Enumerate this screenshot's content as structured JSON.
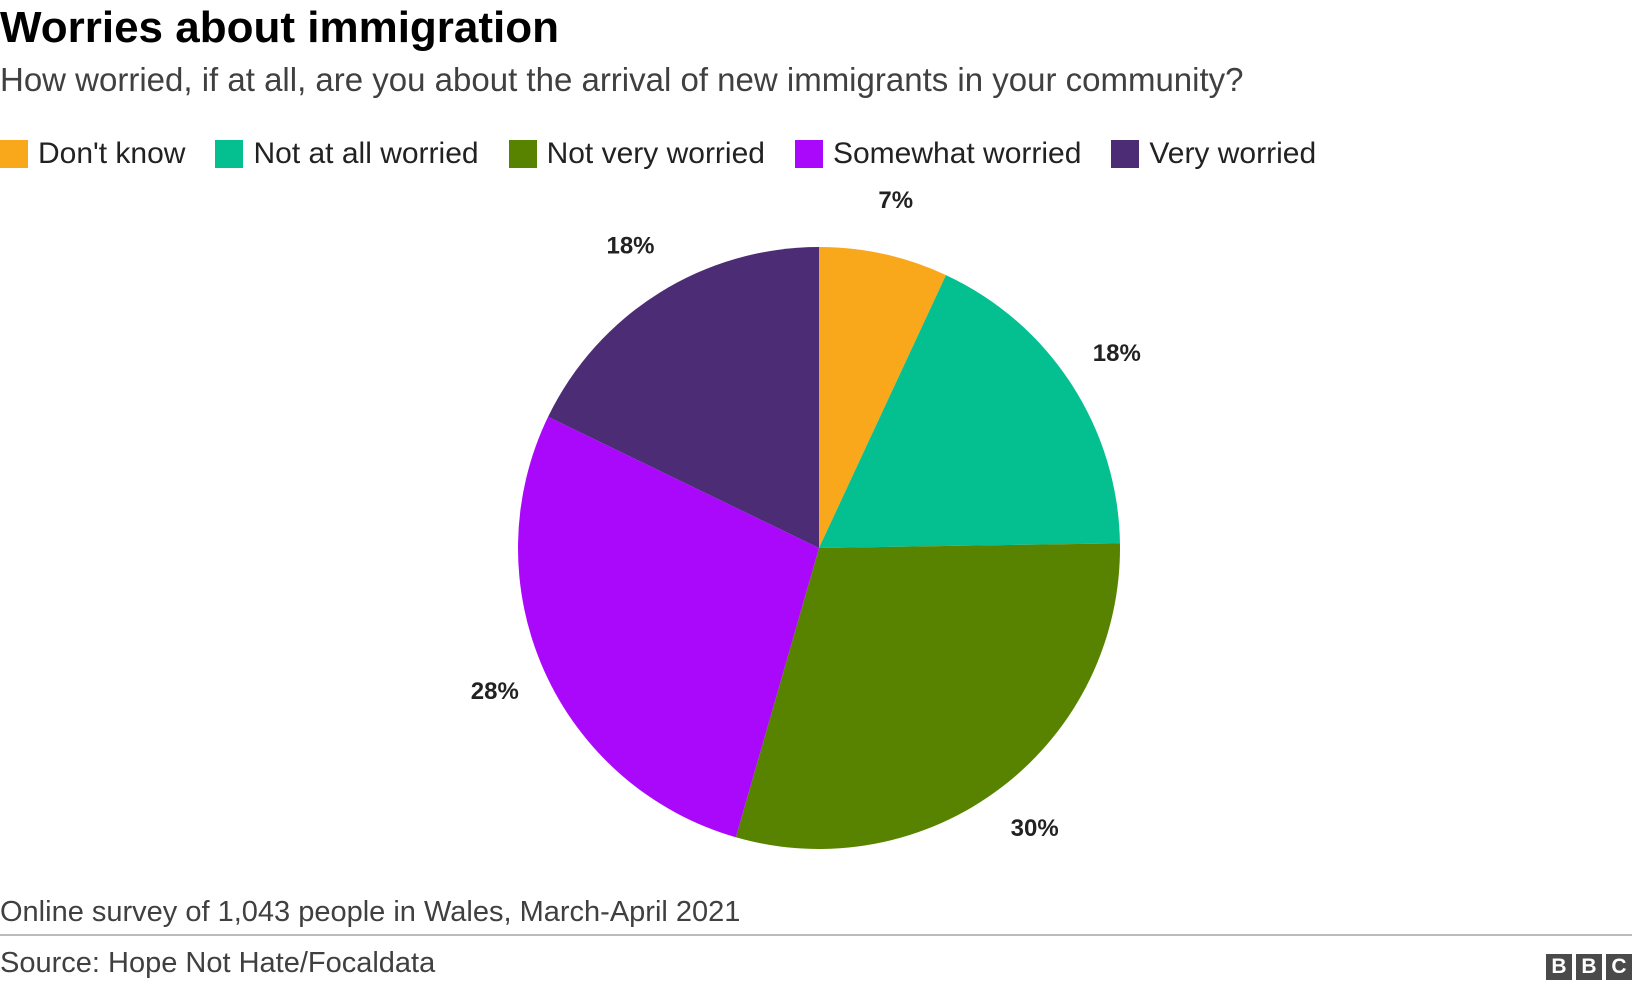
{
  "header": {
    "title": "Worries about immigration",
    "subtitle": "How worried, if at all, are you about the arrival of new immigrants in your community?"
  },
  "chart_data": {
    "type": "pie",
    "start_angle": "12 o'clock",
    "direction": "clockwise",
    "legend_position": "top",
    "categories": [
      "Don't know",
      "Not at all worried",
      "Not very worried",
      "Somewhat worried",
      "Very worried"
    ],
    "values": [
      7,
      18,
      30,
      28,
      18
    ],
    "labels": [
      "7%",
      "18%",
      "30%",
      "28%",
      "18%"
    ],
    "colors": [
      "#f9a81c",
      "#04c090",
      "#588300",
      "#aa08fa",
      "#4b2c75"
    ]
  },
  "footer": {
    "note": "Online survey of 1,043 people in Wales, March-April 2021",
    "source": "Source: Hope Not Hate/Focaldata",
    "logo_letters": [
      "B",
      "B",
      "C"
    ]
  }
}
